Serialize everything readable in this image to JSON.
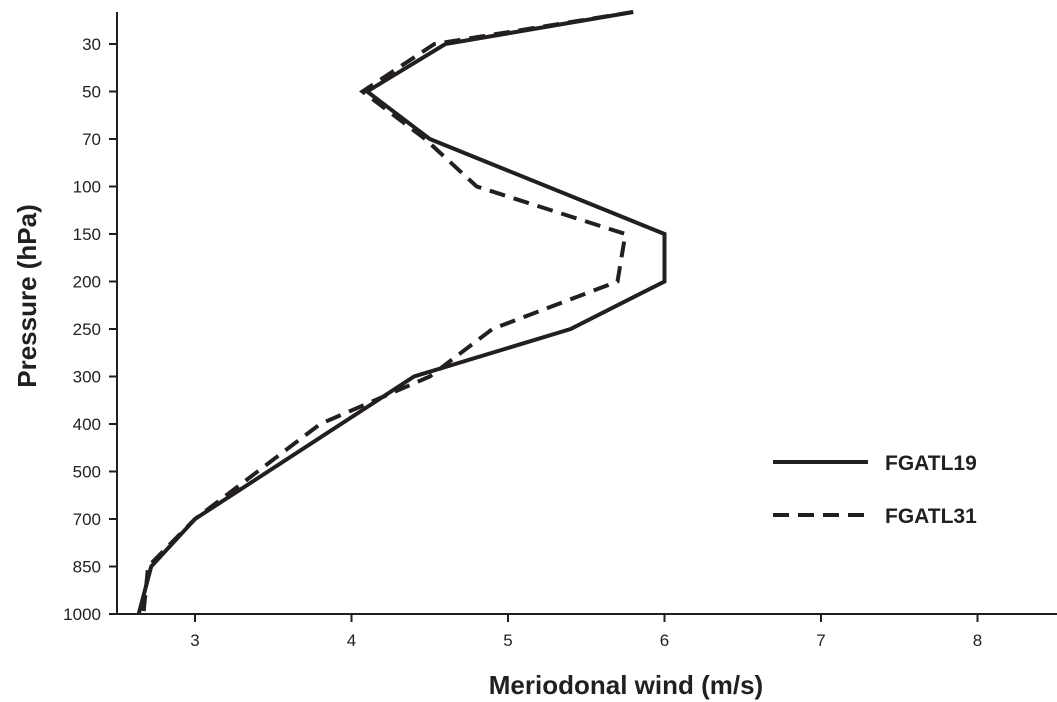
{
  "chart_data": {
    "type": "line",
    "xlabel": "Meriodonal wind (m/s)",
    "ylabel": "Pressure (hPa)",
    "xlim": [
      2.5,
      8.5
    ],
    "x_ticks": [
      "3",
      "4",
      "5",
      "6",
      "7",
      "8"
    ],
    "y_levels": [
      "10",
      "30",
      "50",
      "70",
      "100",
      "150",
      "200",
      "250",
      "300",
      "400",
      "500",
      "700",
      "850",
      "1000"
    ],
    "y_ticks": [
      "30",
      "50",
      "70",
      "100",
      "150",
      "200",
      "250",
      "300",
      "400",
      "500",
      "700",
      "850",
      "1000"
    ],
    "y_scale": "categorical, top to bottom (pressure increasing downward)",
    "grid": false,
    "legend_position": "lower-right",
    "series": [
      {
        "name": "FGATL19",
        "style": "solid",
        "color": "#231f20",
        "points": [
          {
            "p": "10",
            "u": 5.8
          },
          {
            "p": "30",
            "u": 4.6
          },
          {
            "p": "50",
            "u": 4.1
          },
          {
            "p": "70",
            "u": 4.5
          },
          {
            "p": "150",
            "u": 6.0
          },
          {
            "p": "200",
            "u": 6.0
          },
          {
            "p": "250",
            "u": 5.4
          },
          {
            "p": "300",
            "u": 4.4
          },
          {
            "p": "700",
            "u": 3.0
          },
          {
            "p": "850",
            "u": 2.72
          },
          {
            "p": "1000",
            "u": 2.64
          }
        ]
      },
      {
        "name": "FGATL31",
        "style": "dashed",
        "color": "#231f20",
        "points": [
          {
            "p": "10",
            "u": 5.8
          },
          {
            "p": "30",
            "u": 4.53
          },
          {
            "p": "50",
            "u": 4.07
          },
          {
            "p": "70",
            "u": 4.47
          },
          {
            "p": "100",
            "u": 4.8
          },
          {
            "p": "150",
            "u": 5.75
          },
          {
            "p": "200",
            "u": 5.7
          },
          {
            "p": "250",
            "u": 4.9
          },
          {
            "p": "300",
            "u": 4.5
          },
          {
            "p": "400",
            "u": 3.8
          },
          {
            "p": "700",
            "u": 3.0
          },
          {
            "p": "850",
            "u": 2.7
          },
          {
            "p": "1000",
            "u": 2.67
          }
        ]
      }
    ]
  }
}
